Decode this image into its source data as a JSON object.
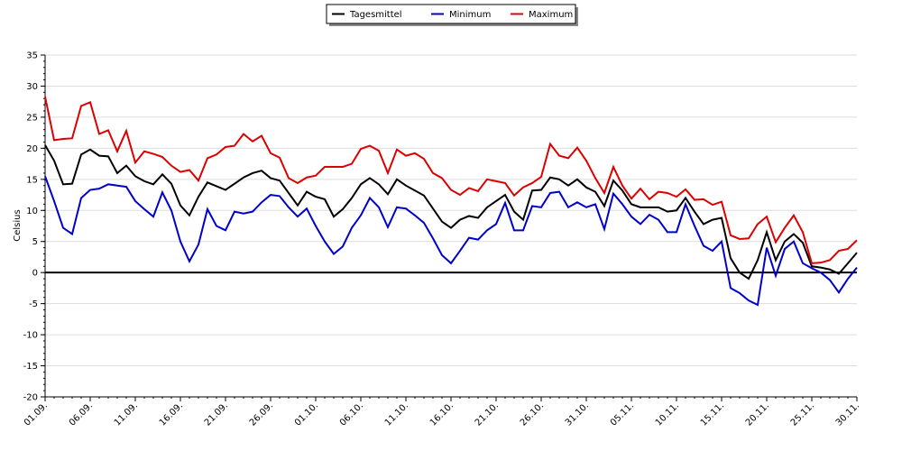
{
  "chart_data": {
    "type": "line",
    "y_label": "Celsius",
    "categories": [
      "01.09.",
      null,
      null,
      null,
      null,
      "06.09.",
      null,
      null,
      null,
      null,
      "11.09.",
      null,
      null,
      null,
      null,
      "16.09.",
      null,
      null,
      null,
      null,
      "21.09.",
      null,
      null,
      null,
      null,
      "26.09.",
      null,
      null,
      null,
      null,
      "01.10.",
      null,
      null,
      null,
      null,
      "06.10.",
      null,
      null,
      null,
      null,
      "11.10.",
      null,
      null,
      null,
      null,
      "16.10.",
      null,
      null,
      null,
      null,
      "21.10.",
      null,
      null,
      null,
      null,
      "26.10.",
      null,
      null,
      null,
      null,
      "31.10.",
      null,
      null,
      null,
      null,
      "05.11.",
      null,
      null,
      null,
      null,
      "10.11.",
      null,
      null,
      null,
      null,
      "15.11.",
      null,
      null,
      null,
      null,
      "20.11.",
      null,
      null,
      null,
      null,
      "25.11.",
      null,
      null,
      null,
      null,
      "30.11."
    ],
    "series": [
      {
        "name": "Tagesmittel",
        "color": "#000000",
        "values": [
          20.5,
          18,
          14.2,
          14.3,
          19,
          19.8,
          18.8,
          18.7,
          16,
          17.2,
          15.5,
          14.7,
          14.2,
          15.8,
          14.3,
          10.8,
          9.2,
          12.2,
          14.5,
          13.9,
          13.3,
          14.3,
          15.3,
          16,
          16.4,
          15.2,
          14.8,
          12.8,
          10.8,
          13,
          12.2,
          11.8,
          9,
          10.2,
          12,
          14.2,
          15.2,
          14.2,
          12.6,
          15,
          14,
          13.2,
          12.4,
          10.3,
          8.2,
          7.2,
          8.5,
          9.1,
          8.8,
          10.5,
          11.5,
          12.5,
          9.8,
          8.5,
          13.2,
          13.3,
          15.3,
          15,
          14,
          15,
          13.7,
          13,
          10.7,
          14.8,
          13.2,
          11,
          10.5,
          10.5,
          10.5,
          9.8,
          10,
          12,
          9.8,
          7.8,
          8.5,
          8.8,
          2.3,
          0,
          -1,
          2,
          6.5,
          2,
          5,
          6.2,
          4.8,
          1,
          0.8,
          0.5,
          -0.2,
          1.5,
          3.2
        ]
      },
      {
        "name": "Minimum",
        "color": "#0000cc",
        "values": [
          15.5,
          11.5,
          7.2,
          6.2,
          12,
          13.3,
          13.5,
          14.2,
          14,
          13.8,
          11.5,
          10.2,
          9,
          12.9,
          10,
          5,
          1.8,
          4.5,
          10.2,
          7.5,
          6.8,
          9.8,
          9.5,
          9.8,
          11.3,
          12.5,
          12.3,
          10.5,
          9,
          10.3,
          7.5,
          5,
          3,
          4.2,
          7.2,
          9.2,
          12,
          10.5,
          7.3,
          10.5,
          10.3,
          9.2,
          8,
          5.5,
          2.8,
          1.5,
          3.5,
          5.6,
          5.3,
          6.8,
          7.8,
          11.2,
          6.8,
          6.8,
          10.7,
          10.5,
          12.8,
          13,
          10.5,
          11.3,
          10.5,
          11,
          7,
          12.7,
          11,
          9,
          7.8,
          9.3,
          8.5,
          6.5,
          6.5,
          11,
          7.5,
          4.3,
          3.5,
          5,
          -2.5,
          -3.3,
          -4.5,
          -5.2,
          4,
          -0.5,
          3.8,
          5,
          1.5,
          0.7,
          0,
          -1.2,
          -3.2,
          -1,
          0.8
        ]
      },
      {
        "name": "Maximum",
        "color": "#dd0000",
        "values": [
          28.3,
          21.3,
          21.5,
          21.6,
          26.8,
          27.4,
          22.3,
          22.9,
          19.5,
          22.8,
          17.7,
          19.5,
          19.1,
          18.6,
          17.2,
          16.2,
          16.5,
          14.8,
          18.4,
          19,
          20.2,
          20.4,
          22.3,
          21.1,
          22,
          19.2,
          18.5,
          15.2,
          14.4,
          15.3,
          15.6,
          17,
          17,
          17,
          17.5,
          19.9,
          20.4,
          19.6,
          16,
          19.8,
          18.8,
          19.2,
          18.3,
          16,
          15.2,
          13.3,
          12.5,
          13.6,
          13.1,
          15,
          14.7,
          14.4,
          12.4,
          13.7,
          14.4,
          15.4,
          20.7,
          18.8,
          18.4,
          20.1,
          18,
          15.2,
          12.8,
          17,
          14,
          11.9,
          13.5,
          11.8,
          13,
          12.8,
          12.2,
          13.4,
          11.7,
          11.8,
          10.9,
          11.4,
          6,
          5.4,
          5.5,
          7.8,
          9,
          4.9,
          7.2,
          9.2,
          6.5,
          1.5,
          1.6,
          2,
          3.5,
          3.8,
          5.2
        ]
      }
    ],
    "ylim": [
      -20,
      35
    ],
    "yticks": [
      -20,
      -15,
      -10,
      -5,
      0,
      5,
      10,
      15,
      20,
      25,
      30,
      35
    ],
    "grid": true,
    "legend": "top"
  }
}
